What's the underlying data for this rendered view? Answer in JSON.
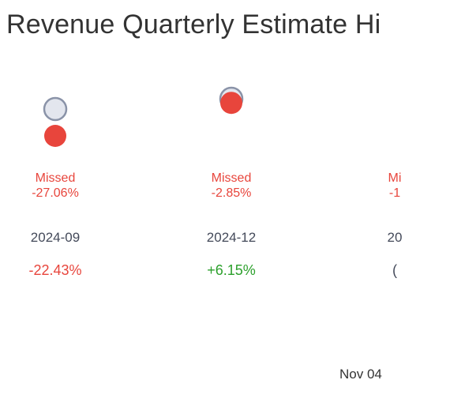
{
  "title": "Revenue Quarterly Estimate Hi",
  "footer_date": "Nov 04",
  "colors": {
    "estimate_fill": "#e3e6ee",
    "estimate_stroke": "#8a93a8",
    "actual_miss": "#e8453c",
    "positive": "#2ca02c",
    "negative": "#e8453c",
    "date_text": "#444a5a"
  },
  "chart_data": {
    "type": "scatter",
    "title": "Revenue Quarterly Estimate Hi",
    "series": [
      {
        "name": "",
        "role": "estimate",
        "values": [
          1.0,
          1.0
        ]
      },
      {
        "name": "",
        "role": "actual",
        "values": [
          0.73,
          0.97
        ]
      }
    ],
    "quarters": [
      {
        "period": "2024-09",
        "status": "Missed",
        "surprise": "-27.06%",
        "change": "-22.43%",
        "change_sign": "negative",
        "estimate": 1.0,
        "actual": 0.73
      },
      {
        "period": "2024-12",
        "status": "Missed",
        "surprise": "-2.85%",
        "change": "+6.15%",
        "change_sign": "positive",
        "estimate": 1.0,
        "actual": 0.97
      },
      {
        "period": "20",
        "status": "Mi",
        "surprise": "-1",
        "change": "(",
        "change_sign": "neutral",
        "estimate": null,
        "actual": null
      }
    ]
  }
}
